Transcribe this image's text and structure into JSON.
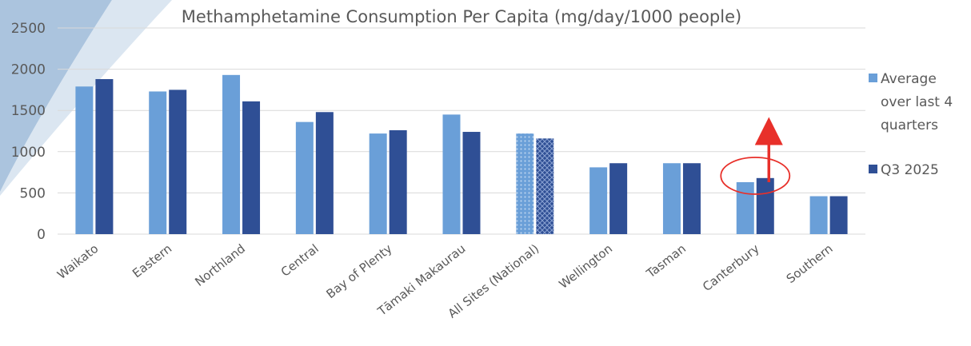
{
  "chart_data": {
    "type": "bar",
    "title": "Methamphetamine Consumption Per Capita (mg/day/1000 people)",
    "xlabel": "",
    "ylabel": "",
    "ylim": [
      0,
      2500
    ],
    "yticks": [
      "0",
      "500",
      "1000",
      "1500",
      "2000",
      "2500"
    ],
    "grid": true,
    "legend_position": "right",
    "categories": [
      "Waikato",
      "Eastern",
      "Northland",
      "Central",
      "Bay of Plenty",
      "Tāmaki Makaurau",
      "All Sites (National)",
      "Wellington",
      "Tasman",
      "Canterbury",
      "Southern"
    ],
    "series": [
      {
        "name": "Average over last 4 quarters",
        "legend_lines": [
          "Average",
          "over last 4",
          "quarters"
        ],
        "color": "#6a9fd8",
        "values": [
          1790,
          1730,
          1930,
          1360,
          1220,
          1450,
          1220,
          810,
          860,
          630,
          460
        ]
      },
      {
        "name": "Q3 2025",
        "legend_lines": [
          "Q3 2025"
        ],
        "color": "#2f4f95",
        "values": [
          1880,
          1750,
          1610,
          1480,
          1260,
          1240,
          1160,
          860,
          860,
          680,
          460
        ]
      }
    ],
    "patterned_category": "All Sites (National)",
    "annotation": {
      "category": "Canterbury",
      "shape": "circle-with-up-arrow",
      "color": "#e8302a"
    }
  }
}
